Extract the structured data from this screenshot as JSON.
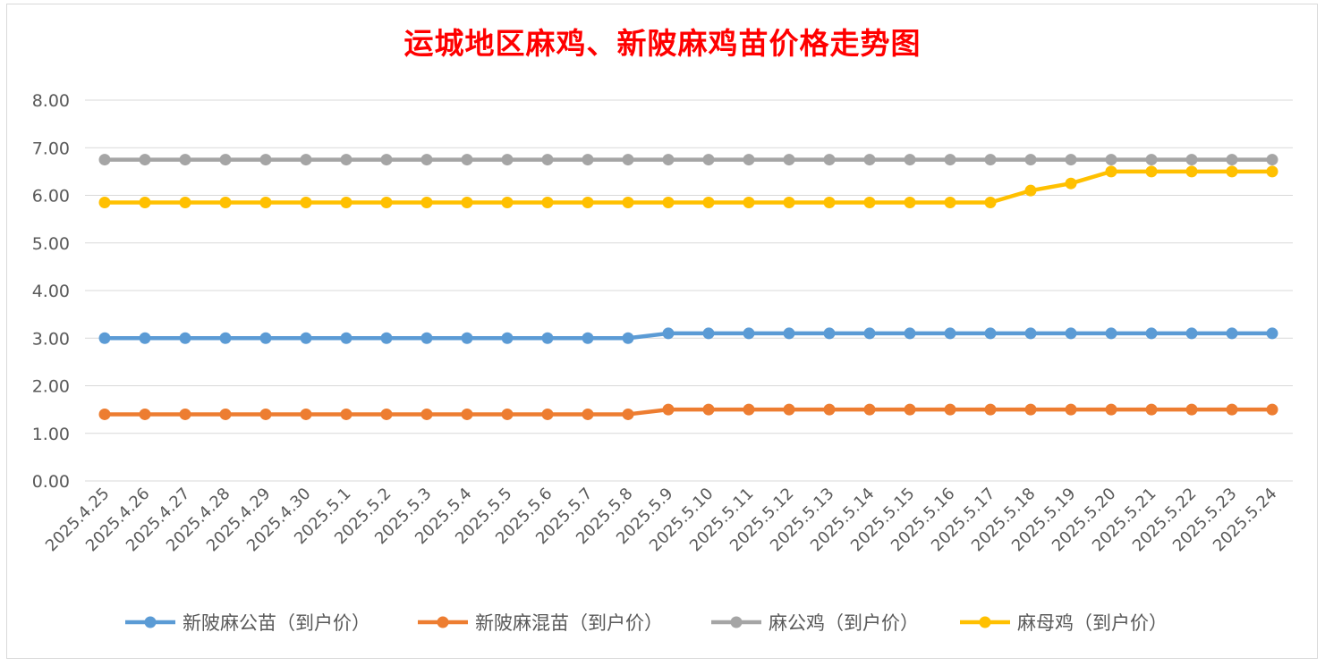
{
  "chart_data": {
    "type": "line",
    "title": "运城地区麻鸡、新陂麻鸡苗价格走势图",
    "xlabel": "",
    "ylabel": "",
    "ylim": [
      0,
      8
    ],
    "ytick_labels": [
      "0.00",
      "1.00",
      "2.00",
      "3.00",
      "4.00",
      "5.00",
      "6.00",
      "7.00",
      "8.00"
    ],
    "grid": "horizontal",
    "legend_position": "bottom",
    "categories": [
      "2025.4.25",
      "2025.4.26",
      "2025.4.27",
      "2025.4.28",
      "2025.4.29",
      "2025.4.30",
      "2025.5.1",
      "2025.5.2",
      "2025.5.3",
      "2025.5.4",
      "2025.5.5",
      "2025.5.6",
      "2025.5.7",
      "2025.5.8",
      "2025.5.9",
      "2025.5.10",
      "2025.5.11",
      "2025.5.12",
      "2025.5.13",
      "2025.5.14",
      "2025.5.15",
      "2025.5.16",
      "2025.5.17",
      "2025.5.18",
      "2025.5.19",
      "2025.5.20",
      "2025.5.21",
      "2025.5.22",
      "2025.5.23",
      "2025.5.24"
    ],
    "series": [
      {
        "name": "新陂麻公苗（到户价）",
        "color": "#5b9bd5",
        "values": [
          3.0,
          3.0,
          3.0,
          3.0,
          3.0,
          3.0,
          3.0,
          3.0,
          3.0,
          3.0,
          3.0,
          3.0,
          3.0,
          3.0,
          3.1,
          3.1,
          3.1,
          3.1,
          3.1,
          3.1,
          3.1,
          3.1,
          3.1,
          3.1,
          3.1,
          3.1,
          3.1,
          3.1,
          3.1,
          3.1
        ]
      },
      {
        "name": "新陂麻混苗（到户价）",
        "color": "#ed7d31",
        "values": [
          1.4,
          1.4,
          1.4,
          1.4,
          1.4,
          1.4,
          1.4,
          1.4,
          1.4,
          1.4,
          1.4,
          1.4,
          1.4,
          1.4,
          1.5,
          1.5,
          1.5,
          1.5,
          1.5,
          1.5,
          1.5,
          1.5,
          1.5,
          1.5,
          1.5,
          1.5,
          1.5,
          1.5,
          1.5,
          1.5
        ]
      },
      {
        "name": "麻公鸡（到户价）",
        "color": "#a5a5a5",
        "values": [
          6.75,
          6.75,
          6.75,
          6.75,
          6.75,
          6.75,
          6.75,
          6.75,
          6.75,
          6.75,
          6.75,
          6.75,
          6.75,
          6.75,
          6.75,
          6.75,
          6.75,
          6.75,
          6.75,
          6.75,
          6.75,
          6.75,
          6.75,
          6.75,
          6.75,
          6.75,
          6.75,
          6.75,
          6.75,
          6.75
        ]
      },
      {
        "name": "麻母鸡（到户价）",
        "color": "#ffc000",
        "values": [
          5.85,
          5.85,
          5.85,
          5.85,
          5.85,
          5.85,
          5.85,
          5.85,
          5.85,
          5.85,
          5.85,
          5.85,
          5.85,
          5.85,
          5.85,
          5.85,
          5.85,
          5.85,
          5.85,
          5.85,
          5.85,
          5.85,
          5.85,
          6.1,
          6.25,
          6.5,
          6.5,
          6.5,
          6.5,
          6.5
        ]
      }
    ]
  }
}
